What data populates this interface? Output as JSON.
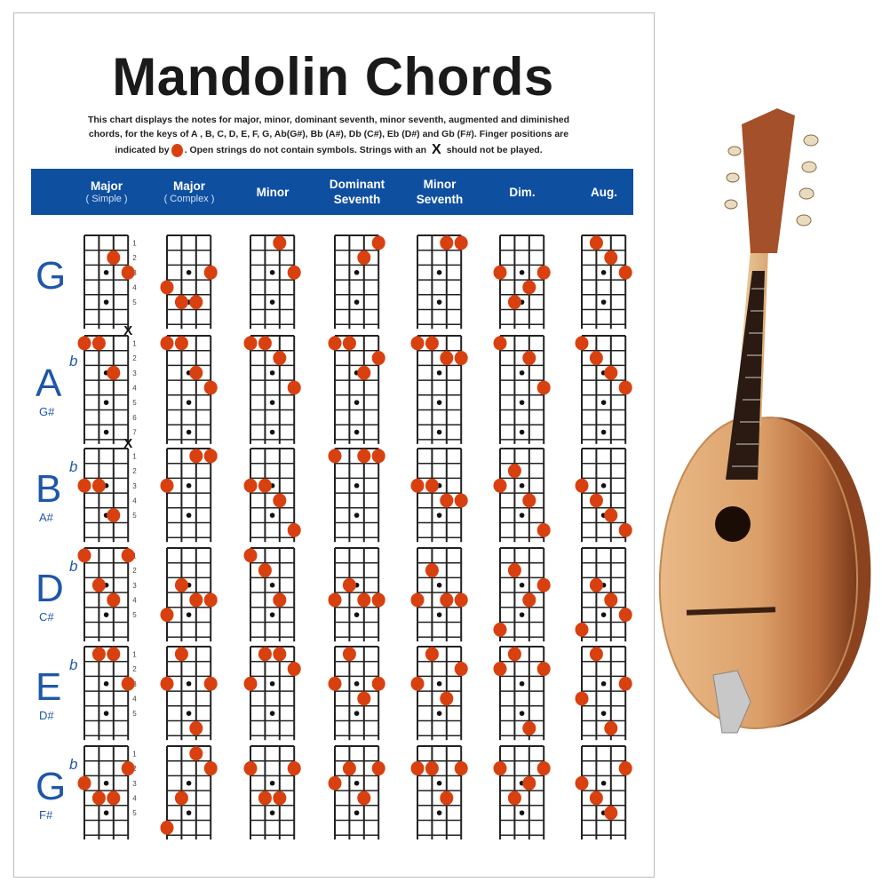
{
  "title": "Mandolin Chords",
  "description": {
    "line1": "This chart displays the notes for major, minor, dominant seventh, minor seventh, augmented and diminished",
    "line2": "chords, for the keys of  A , B, C, D, E, F, G, Ab(G#), Bb (A#), Db (C#), Eb (D#) and Gb (F#). Finger positions are",
    "line3_a": "indicated by",
    "line3_b": ". Open strings do not contain symbols. Strings with an",
    "line3_c": "should not be played.",
    "finger_icon": "red-circle",
    "mute_icon": "X"
  },
  "colors": {
    "header_band": "#0f4fa0",
    "key_label": "#1e57a8",
    "finger": "#d8400f"
  },
  "columns": [
    {
      "label": "Major",
      "sub": "( Simple )"
    },
    {
      "label": "Major",
      "sub": "( Complex )"
    },
    {
      "label": "Minor",
      "sub": ""
    },
    {
      "label": "Dominant",
      "sub2": "Seventh"
    },
    {
      "label": "Minor",
      "sub2": "Seventh"
    },
    {
      "label": "Dim.",
      "sub": ""
    },
    {
      "label": "Aug.",
      "sub": ""
    }
  ],
  "mute_symbol": "X",
  "rows": [
    {
      "key": "G",
      "flat": "",
      "alt": "",
      "frets": 6,
      "fret_labels": [
        "1",
        "2",
        "3",
        "4",
        "5"
      ],
      "inlays": [
        3,
        5
      ],
      "chords": [
        {
          "fingers": [
            [
              2,
              2
            ],
            [
              3,
              3
            ]
          ],
          "muted": []
        },
        {
          "fingers": [
            [
              3,
              3
            ],
            [
              0,
              4
            ],
            [
              1,
              5
            ],
            [
              2,
              5
            ]
          ],
          "muted": []
        },
        {
          "fingers": [
            [
              2,
              1
            ],
            [
              3,
              3
            ]
          ],
          "muted": []
        },
        {
          "fingers": [
            [
              3,
              1
            ],
            [
              2,
              2
            ]
          ],
          "muted": []
        },
        {
          "fingers": [
            [
              2,
              1
            ],
            [
              3,
              1
            ]
          ],
          "muted": []
        },
        {
          "fingers": [
            [
              0,
              3
            ],
            [
              3,
              3
            ],
            [
              2,
              4
            ],
            [
              1,
              5
            ]
          ],
          "muted": []
        },
        {
          "fingers": [
            [
              1,
              1
            ],
            [
              2,
              2
            ],
            [
              3,
              3
            ]
          ],
          "muted": []
        }
      ]
    },
    {
      "key": "A",
      "flat": "b",
      "alt": "G#",
      "frets": 7,
      "fret_labels": [
        "1",
        "2",
        "3",
        "4",
        "5",
        "6",
        "7"
      ],
      "inlays": [
        3,
        5,
        7
      ],
      "chords": [
        {
          "fingers": [
            [
              0,
              1
            ],
            [
              1,
              1
            ],
            [
              2,
              3
            ]
          ],
          "muted": [
            3
          ]
        },
        {
          "fingers": [
            [
              0,
              1
            ],
            [
              1,
              1
            ],
            [
              2,
              3
            ],
            [
              3,
              4
            ]
          ],
          "muted": []
        },
        {
          "fingers": [
            [
              0,
              1
            ],
            [
              1,
              1
            ],
            [
              2,
              2
            ],
            [
              3,
              4
            ]
          ],
          "muted": []
        },
        {
          "fingers": [
            [
              0,
              1
            ],
            [
              1,
              1
            ],
            [
              3,
              2
            ],
            [
              2,
              3
            ]
          ],
          "muted": []
        },
        {
          "fingers": [
            [
              0,
              1
            ],
            [
              1,
              1
            ],
            [
              2,
              2
            ],
            [
              3,
              2
            ]
          ],
          "muted": []
        },
        {
          "fingers": [
            [
              0,
              1
            ],
            [
              2,
              2
            ],
            [
              3,
              4
            ]
          ],
          "muted": []
        },
        {
          "fingers": [
            [
              0,
              1
            ],
            [
              1,
              2
            ],
            [
              2,
              3
            ],
            [
              3,
              4
            ]
          ],
          "muted": []
        }
      ]
    },
    {
      "key": "B",
      "flat": "b",
      "alt": "A#",
      "frets": 6,
      "fret_labels": [
        "1",
        "2",
        "3",
        "4",
        "5"
      ],
      "inlays": [
        3,
        5
      ],
      "chords": [
        {
          "fingers": [
            [
              0,
              3
            ],
            [
              1,
              3
            ],
            [
              2,
              5
            ]
          ],
          "muted": [
            3
          ]
        },
        {
          "fingers": [
            [
              2,
              1
            ],
            [
              3,
              1
            ],
            [
              0,
              3
            ]
          ],
          "muted": []
        },
        {
          "fingers": [
            [
              0,
              3
            ],
            [
              1,
              3
            ],
            [
              2,
              4
            ],
            [
              3,
              6
            ]
          ],
          "muted": []
        },
        {
          "fingers": [
            [
              0,
              1
            ],
            [
              2,
              1
            ],
            [
              3,
              1
            ]
          ],
          "muted": []
        },
        {
          "fingers": [
            [
              0,
              3
            ],
            [
              1,
              3
            ],
            [
              2,
              4
            ],
            [
              3,
              4
            ]
          ],
          "muted": []
        },
        {
          "fingers": [
            [
              1,
              2
            ],
            [
              0,
              3
            ],
            [
              2,
              4
            ],
            [
              3,
              6
            ]
          ],
          "muted": []
        },
        {
          "fingers": [
            [
              0,
              3
            ],
            [
              1,
              4
            ],
            [
              2,
              5
            ],
            [
              3,
              6
            ]
          ],
          "muted": []
        }
      ]
    },
    {
      "key": "D",
      "flat": "b",
      "alt": "C#",
      "frets": 6,
      "fret_labels": [
        "1",
        "2",
        "3",
        "4",
        "5"
      ],
      "inlays": [
        3,
        5
      ],
      "chords": [
        {
          "fingers": [
            [
              0,
              1
            ],
            [
              3,
              1
            ],
            [
              1,
              3
            ],
            [
              2,
              4
            ]
          ],
          "muted": []
        },
        {
          "fingers": [
            [
              1,
              3
            ],
            [
              2,
              4
            ],
            [
              3,
              4
            ],
            [
              0,
              5
            ]
          ],
          "muted": []
        },
        {
          "fingers": [
            [
              0,
              1
            ],
            [
              1,
              2
            ],
            [
              2,
              4
            ]
          ],
          "muted": []
        },
        {
          "fingers": [
            [
              1,
              3
            ],
            [
              0,
              4
            ],
            [
              2,
              4
            ],
            [
              3,
              4
            ]
          ],
          "muted": []
        },
        {
          "fingers": [
            [
              1,
              2
            ],
            [
              0,
              4
            ],
            [
              2,
              4
            ],
            [
              3,
              4
            ]
          ],
          "muted": []
        },
        {
          "fingers": [
            [
              1,
              2
            ],
            [
              3,
              3
            ],
            [
              2,
              4
            ],
            [
              0,
              6
            ]
          ],
          "muted": []
        },
        {
          "fingers": [
            [
              1,
              3
            ],
            [
              2,
              4
            ],
            [
              3,
              5
            ],
            [
              0,
              6
            ]
          ],
          "muted": []
        }
      ]
    },
    {
      "key": "E",
      "flat": "b",
      "alt": "D#",
      "frets": 6,
      "fret_labels": [
        "1",
        "2",
        "3",
        "4",
        "5"
      ],
      "inlays": [
        3,
        5
      ],
      "chords": [
        {
          "fingers": [
            [
              1,
              1
            ],
            [
              2,
              1
            ],
            [
              3,
              3
            ]
          ],
          "muted": []
        },
        {
          "fingers": [
            [
              1,
              1
            ],
            [
              0,
              3
            ],
            [
              3,
              3
            ],
            [
              2,
              6
            ]
          ],
          "muted": []
        },
        {
          "fingers": [
            [
              1,
              1
            ],
            [
              2,
              1
            ],
            [
              3,
              2
            ],
            [
              0,
              3
            ]
          ],
          "muted": []
        },
        {
          "fingers": [
            [
              1,
              1
            ],
            [
              0,
              3
            ],
            [
              3,
              3
            ],
            [
              2,
              4
            ]
          ],
          "muted": []
        },
        {
          "fingers": [
            [
              1,
              1
            ],
            [
              3,
              2
            ],
            [
              0,
              3
            ],
            [
              2,
              4
            ]
          ],
          "muted": []
        },
        {
          "fingers": [
            [
              1,
              1
            ],
            [
              0,
              2
            ],
            [
              3,
              2
            ],
            [
              2,
              6
            ]
          ],
          "muted": []
        },
        {
          "fingers": [
            [
              1,
              1
            ],
            [
              3,
              3
            ],
            [
              0,
              4
            ],
            [
              2,
              6
            ]
          ],
          "muted": []
        }
      ]
    },
    {
      "key": "G",
      "flat": "b",
      "alt": "F#",
      "frets": 6,
      "fret_labels": [
        "1",
        "2",
        "3",
        "4",
        "5"
      ],
      "inlays": [
        3,
        5
      ],
      "chords": [
        {
          "fingers": [
            [
              3,
              2
            ],
            [
              0,
              3
            ],
            [
              1,
              4
            ],
            [
              2,
              4
            ]
          ],
          "muted": []
        },
        {
          "fingers": [
            [
              2,
              1
            ],
            [
              3,
              2
            ],
            [
              1,
              4
            ],
            [
              0,
              6
            ]
          ],
          "muted": []
        },
        {
          "fingers": [
            [
              0,
              2
            ],
            [
              3,
              2
            ],
            [
              1,
              4
            ],
            [
              2,
              4
            ]
          ],
          "muted": []
        },
        {
          "fingers": [
            [
              1,
              2
            ],
            [
              3,
              2
            ],
            [
              0,
              3
            ],
            [
              2,
              4
            ]
          ],
          "muted": []
        },
        {
          "fingers": [
            [
              0,
              2
            ],
            [
              1,
              2
            ],
            [
              3,
              2
            ],
            [
              2,
              4
            ]
          ],
          "muted": []
        },
        {
          "fingers": [
            [
              0,
              2
            ],
            [
              3,
              2
            ],
            [
              2,
              3
            ],
            [
              1,
              4
            ]
          ],
          "muted": []
        },
        {
          "fingers": [
            [
              3,
              2
            ],
            [
              0,
              3
            ],
            [
              1,
              4
            ],
            [
              2,
              5
            ]
          ],
          "muted": []
        }
      ]
    }
  ]
}
